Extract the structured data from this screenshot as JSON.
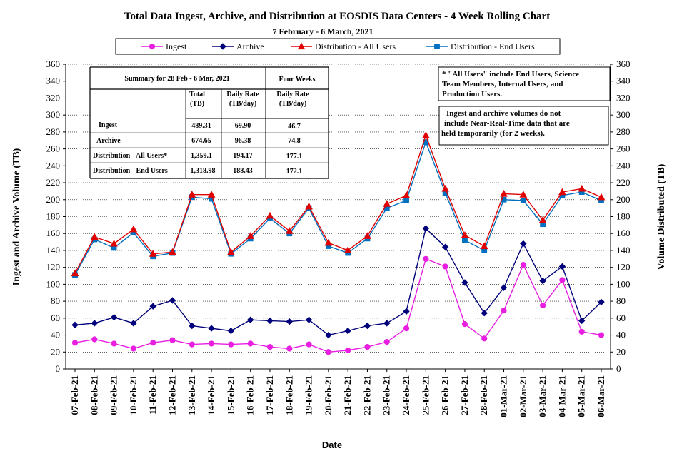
{
  "chart_data": {
    "type": "line",
    "title": "Total Data Ingest, Archive, and  Distribution at EOSDIS Data Centers - 4 Week Rolling Chart",
    "subtitle": "7  February   -  6  March,  2021",
    "xlabel": "Date",
    "ylabel_left": "Ingest and Archive Volume (TB)",
    "ylabel_right": "Volume Distributed (TB)",
    "ylim": [
      0,
      360
    ],
    "y_step": 20,
    "grid": true,
    "legend_position": "top",
    "categories": [
      "07-Feb-21",
      "08-Feb-21",
      "09-Feb-21",
      "10-Feb-21",
      "11-Feb-21",
      "12-Feb-21",
      "13-Feb-21",
      "14-Feb-21",
      "15-Feb-21",
      "16-Feb-21",
      "17-Feb-21",
      "18-Feb-21",
      "19-Feb-21",
      "20-Feb-21",
      "21-Feb-21",
      "22-Feb-21",
      "23-Feb-21",
      "24-Feb-21",
      "25-Feb-21",
      "26-Feb-21",
      "27-Feb-21",
      "28-Feb-21",
      "01-Mar-21",
      "02-Mar-21",
      "03-Mar-21",
      "04-Mar-21",
      "05-Mar-21",
      "06-Mar-21"
    ],
    "series": [
      {
        "name": "Ingest",
        "color": "#e81ee0",
        "marker": "circle",
        "values": [
          31,
          35,
          30,
          24,
          31,
          34,
          29,
          30,
          29,
          30,
          26,
          24,
          29,
          20,
          22,
          26,
          32,
          48,
          130,
          121,
          53,
          36,
          69,
          123,
          75,
          105,
          44,
          40
        ]
      },
      {
        "name": "Archive",
        "color": "#00007a",
        "marker": "diamond",
        "values": [
          52,
          54,
          61,
          54,
          74,
          81,
          51,
          48,
          45,
          58,
          57,
          56,
          58,
          40,
          45,
          51,
          54,
          68,
          166,
          144,
          102,
          66,
          96,
          148,
          104,
          121,
          57,
          79
        ]
      },
      {
        "name": "Distribution - All Users",
        "color": "#e00000",
        "marker": "triangle",
        "values": [
          113,
          156,
          148,
          165,
          136,
          138,
          206,
          206,
          138,
          157,
          181,
          163,
          192,
          149,
          140,
          157,
          195,
          205,
          276,
          213,
          158,
          145,
          207,
          206,
          176,
          209,
          213,
          203
        ]
      },
      {
        "name": "Distribution - End Users",
        "color": "#0070c0",
        "marker": "square",
        "values": [
          111,
          153,
          143,
          161,
          133,
          137,
          203,
          201,
          136,
          154,
          178,
          160,
          190,
          145,
          137,
          154,
          190,
          199,
          268,
          208,
          152,
          140,
          200,
          199,
          171,
          205,
          209,
          199
        ]
      }
    ]
  },
  "summary_table": {
    "header": "Summary  for  28  Feb   -  6  Mar,  2021",
    "four_weeks": "Four Weeks",
    "col_total": [
      "Total",
      "(TB)"
    ],
    "col_daily": [
      "Daily Rate",
      "(TB/day)"
    ],
    "col_four": [
      "Daily Rate",
      "(TB/day)"
    ],
    "rows": [
      {
        "label": "Ingest",
        "total": "489.31",
        "daily": "69.90",
        "four": "46.7"
      },
      {
        "label": "Archive",
        "total": "674.65",
        "daily": "96.38",
        "four": "74.8"
      },
      {
        "label": "Distribution - All Users*",
        "total": "1,359.1",
        "daily": "194.17",
        "four": "177.1"
      },
      {
        "label": "Distribution - End Users",
        "total": "1,318.98",
        "daily": "188.43",
        "four": "172.1"
      }
    ]
  },
  "notes": {
    "note1": [
      "* \"All Users\" include End Users, Science",
      "Team Members, Internal Users, and",
      "Production Users."
    ],
    "note2": [
      "Ingest and archive volumes do not",
      "include Near-Real-Time data that are",
      "held temporarily (for 2 weeks)."
    ]
  }
}
